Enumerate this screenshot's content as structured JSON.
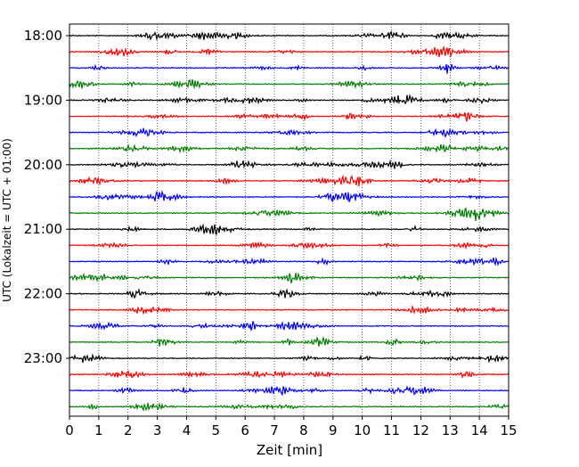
{
  "chart_data": {
    "type": "line",
    "title": "",
    "xlabel": "Zeit  [min]",
    "ylabel": "UTC (Lokalzeit = UTC + 01:00)",
    "xlim": [
      0,
      15
    ],
    "x_ticks": [
      "0",
      "1",
      "2",
      "3",
      "4",
      "5",
      "6",
      "7",
      "8",
      "9",
      "10",
      "11",
      "12",
      "13",
      "14",
      "15"
    ],
    "y_tick_labels": [
      "18:00",
      "19:00",
      "20:00",
      "21:00",
      "22:00",
      "23:00"
    ],
    "trace_start_first": "18:00",
    "trace_interval_minutes": 15,
    "trace_count": 24,
    "trace_colors": [
      "#000000",
      "#ff0000",
      "#0000ff",
      "#007f00"
    ],
    "grid": "vertical dotted lines at each minute"
  }
}
